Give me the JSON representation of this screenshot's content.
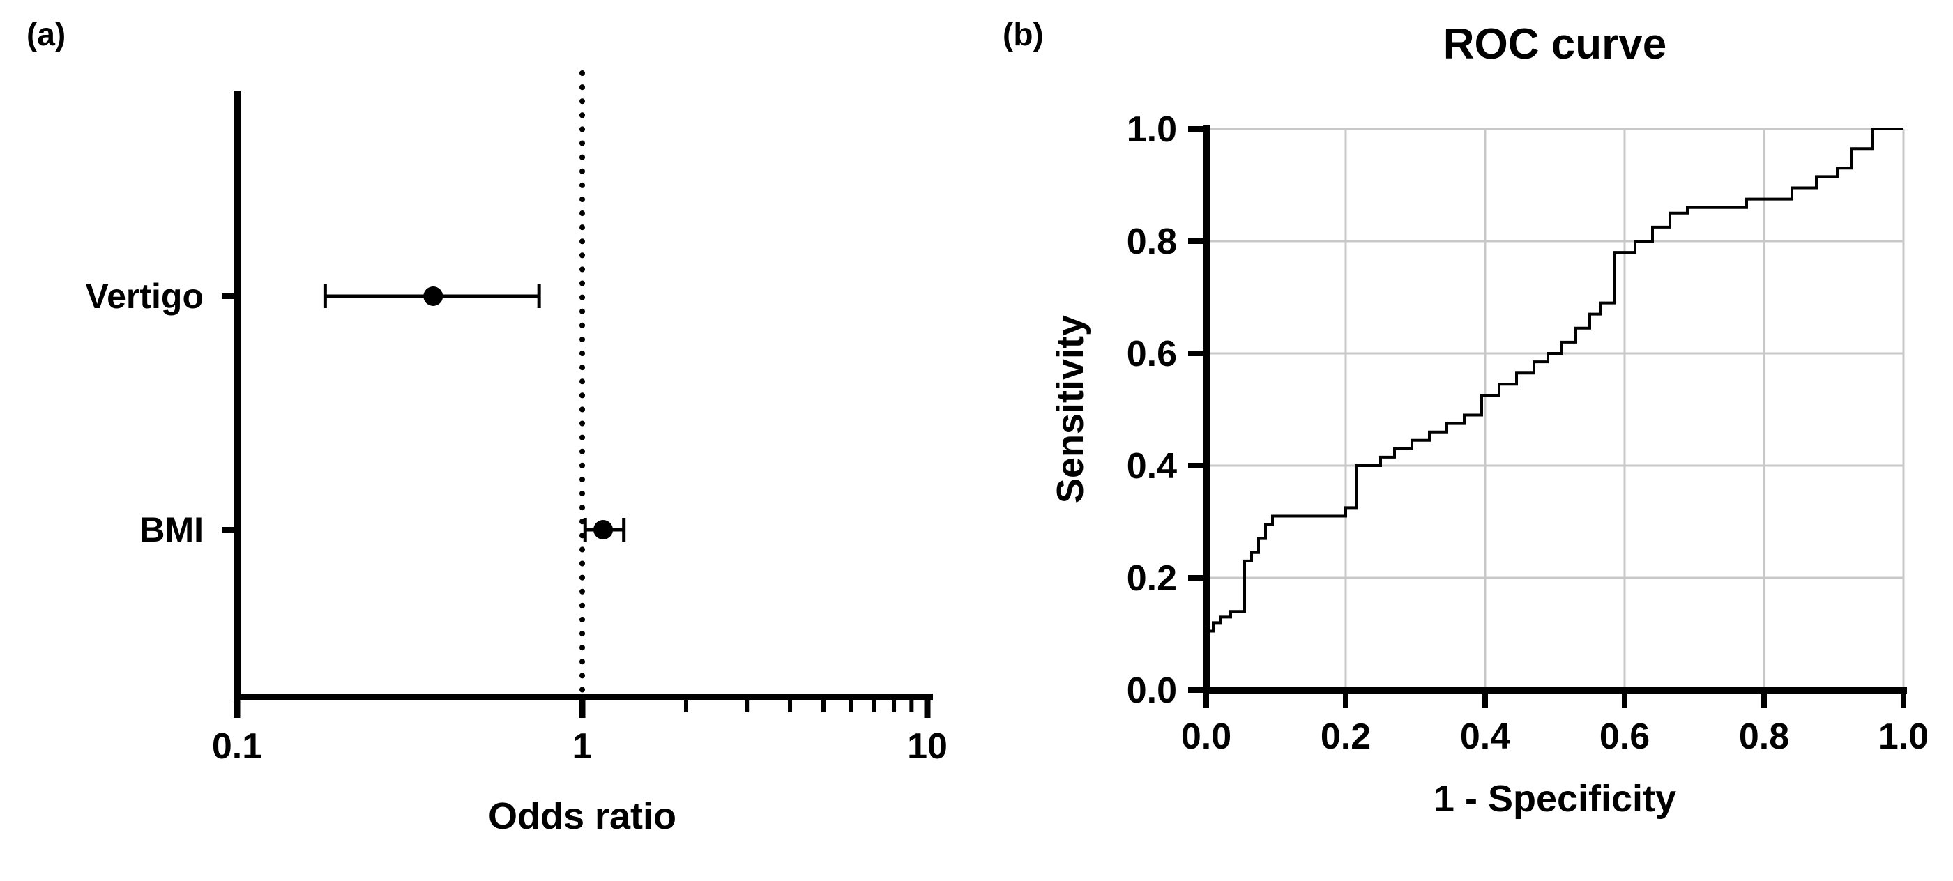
{
  "panels": {
    "a": {
      "label": "(a)"
    },
    "b": {
      "label": "(b)"
    }
  },
  "colors": {
    "axis": "#000000",
    "marker": "#000000",
    "grid": "#c8c8c8",
    "background": "#ffffff"
  },
  "chart_data": [
    {
      "type": "scatter",
      "subtype": "forest-plot",
      "title": "",
      "xlabel": "Odds ratio",
      "ylabel": "",
      "xscale": "log",
      "xlim": [
        0.1,
        10
      ],
      "xticks": [
        0.1,
        1,
        10
      ],
      "xtick_labels": [
        "0.1",
        "1",
        "10"
      ],
      "xminor_ticks": [
        2,
        3,
        4,
        5,
        6,
        7,
        8,
        9
      ],
      "reference_line_x": 1,
      "reference_line_style": "dotted",
      "categories": [
        "Vertigo",
        "BMI"
      ],
      "values": [
        0.37,
        1.15
      ],
      "ci_low": [
        0.18,
        1.02
      ],
      "ci_high": [
        0.75,
        1.32
      ],
      "grid": false,
      "legend": false
    },
    {
      "type": "line",
      "subtype": "roc-step-curve",
      "title": "ROC curve",
      "xlabel": "1 - Specificity",
      "ylabel": "Sensitivity",
      "xlim": [
        0,
        1
      ],
      "ylim": [
        0,
        1
      ],
      "xticks": [
        0,
        0.2,
        0.4,
        0.6,
        0.8,
        1.0
      ],
      "xtick_labels": [
        "0.0",
        "0.2",
        "0.4",
        "0.6",
        "0.8",
        "1.0"
      ],
      "yticks": [
        0,
        0.2,
        0.4,
        0.6,
        0.8,
        1.0
      ],
      "ytick_labels": [
        "0.0",
        "0.2",
        "0.4",
        "0.6",
        "0.8",
        "1.0"
      ],
      "grid": true,
      "legend": false,
      "series": [
        {
          "name": "ROC",
          "points": [
            [
              0,
              0
            ],
            [
              0,
              0.105
            ],
            [
              0.01,
              0.105
            ],
            [
              0.01,
              0.12
            ],
            [
              0.02,
              0.12
            ],
            [
              0.02,
              0.13
            ],
            [
              0.035,
              0.13
            ],
            [
              0.035,
              0.14
            ],
            [
              0.055,
              0.14
            ],
            [
              0.055,
              0.23
            ],
            [
              0.065,
              0.23
            ],
            [
              0.065,
              0.245
            ],
            [
              0.075,
              0.245
            ],
            [
              0.075,
              0.27
            ],
            [
              0.085,
              0.27
            ],
            [
              0.085,
              0.295
            ],
            [
              0.095,
              0.295
            ],
            [
              0.095,
              0.31
            ],
            [
              0.2,
              0.31
            ],
            [
              0.2,
              0.325
            ],
            [
              0.215,
              0.325
            ],
            [
              0.215,
              0.4
            ],
            [
              0.25,
              0.4
            ],
            [
              0.25,
              0.415
            ],
            [
              0.27,
              0.415
            ],
            [
              0.27,
              0.43
            ],
            [
              0.295,
              0.43
            ],
            [
              0.295,
              0.445
            ],
            [
              0.32,
              0.445
            ],
            [
              0.32,
              0.46
            ],
            [
              0.345,
              0.46
            ],
            [
              0.345,
              0.475
            ],
            [
              0.37,
              0.475
            ],
            [
              0.37,
              0.49
            ],
            [
              0.395,
              0.49
            ],
            [
              0.395,
              0.525
            ],
            [
              0.42,
              0.525
            ],
            [
              0.42,
              0.545
            ],
            [
              0.445,
              0.545
            ],
            [
              0.445,
              0.565
            ],
            [
              0.47,
              0.565
            ],
            [
              0.47,
              0.585
            ],
            [
              0.49,
              0.585
            ],
            [
              0.49,
              0.6
            ],
            [
              0.51,
              0.6
            ],
            [
              0.51,
              0.62
            ],
            [
              0.53,
              0.62
            ],
            [
              0.53,
              0.645
            ],
            [
              0.55,
              0.645
            ],
            [
              0.55,
              0.67
            ],
            [
              0.565,
              0.67
            ],
            [
              0.565,
              0.69
            ],
            [
              0.585,
              0.69
            ],
            [
              0.585,
              0.78
            ],
            [
              0.615,
              0.78
            ],
            [
              0.615,
              0.8
            ],
            [
              0.64,
              0.8
            ],
            [
              0.64,
              0.825
            ],
            [
              0.665,
              0.825
            ],
            [
              0.665,
              0.85
            ],
            [
              0.69,
              0.85
            ],
            [
              0.69,
              0.86
            ],
            [
              0.775,
              0.86
            ],
            [
              0.775,
              0.875
            ],
            [
              0.84,
              0.875
            ],
            [
              0.84,
              0.895
            ],
            [
              0.875,
              0.895
            ],
            [
              0.875,
              0.915
            ],
            [
              0.905,
              0.915
            ],
            [
              0.905,
              0.93
            ],
            [
              0.925,
              0.93
            ],
            [
              0.925,
              0.965
            ],
            [
              0.955,
              0.965
            ],
            [
              0.955,
              1.0
            ],
            [
              1.0,
              1.0
            ]
          ]
        }
      ]
    }
  ]
}
